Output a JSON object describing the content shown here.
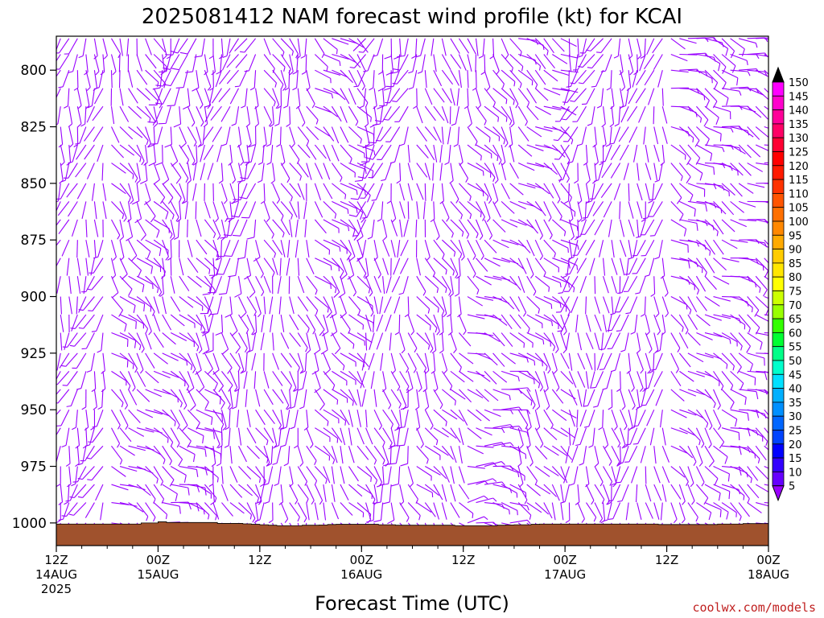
{
  "chart_data": {
    "type": "wind_barb_time_height",
    "title": "2025081412 NAM forecast wind profile (kt) for KCAI",
    "xlabel": "Forecast Time (UTC)",
    "ylabel": "",
    "y_axis": {
      "reversed": true,
      "range": [
        1010,
        785
      ],
      "ticks": [
        "800",
        "825",
        "850",
        "875",
        "900",
        "925",
        "950",
        "975",
        "1000"
      ],
      "tick_values": [
        800,
        825,
        850,
        875,
        900,
        925,
        950,
        975,
        1000
      ]
    },
    "x_axis": {
      "range_hours": [
        0,
        84
      ],
      "ticks": [
        {
          "hour": 0,
          "lines": [
            "12Z",
            "14AUG",
            "2025"
          ]
        },
        {
          "hour": 12,
          "lines": [
            "00Z",
            "15AUG"
          ]
        },
        {
          "hour": 24,
          "lines": [
            "12Z"
          ]
        },
        {
          "hour": 36,
          "lines": [
            "00Z",
            "16AUG"
          ]
        },
        {
          "hour": 48,
          "lines": [
            "12Z"
          ]
        },
        {
          "hour": 60,
          "lines": [
            "00Z",
            "17AUG"
          ]
        },
        {
          "hour": 72,
          "lines": [
            "12Z"
          ]
        },
        {
          "hour": 84,
          "lines": [
            "00Z",
            "18AUG"
          ]
        }
      ]
    },
    "colorbar": {
      "units": "kt",
      "labels": [
        "150",
        "145",
        "140",
        "135",
        "130",
        "125",
        "120",
        "115",
        "110",
        "105",
        "100",
        "95",
        "90",
        "85",
        "80",
        "75",
        "70",
        "65",
        "60",
        "55",
        "50",
        "45",
        "40",
        "35",
        "30",
        "25",
        "20",
        "15",
        "10",
        "5"
      ],
      "colors": [
        "#ff00ff",
        "#ff00cc",
        "#ff0099",
        "#ff0066",
        "#ff0033",
        "#ff0000",
        "#ff1a00",
        "#ff3300",
        "#ff5500",
        "#ff7000",
        "#ff8800",
        "#ffaa00",
        "#ffcc00",
        "#ffe600",
        "#ffff00",
        "#ccff00",
        "#99ff00",
        "#33ff00",
        "#00ff33",
        "#00ff88",
        "#00ffcc",
        "#00e0ff",
        "#00b0ff",
        "#0090ff",
        "#0066ff",
        "#0044ff",
        "#0000ff",
        "#3300ff",
        "#6600ff",
        "#9900ff"
      ]
    },
    "barb_color": "#9900ff",
    "terrain_color": "#a0522d",
    "surface_pressure_hpa": [
      1000.5,
      1000.5,
      1000.5,
      1000.5,
      1000.5,
      1000.5,
      1000.5,
      1000.5,
      1000.5,
      1000.5,
      1000,
      1000,
      999.5,
      999.8,
      999.8,
      999.8,
      999.8,
      999.8,
      999.8,
      1000.2,
      1000.2,
      1000.2,
      1000.4,
      1000.6,
      1000.8,
      1001,
      1001.2,
      1001.2,
      1001.2,
      1001,
      1001,
      1000.9,
      1000.7,
      1000.6,
      1000.6,
      1000.6,
      1000.6,
      1000.6,
      1000.8,
      1000.8,
      1001,
      1001,
      1001,
      1001,
      1001,
      1001,
      1001,
      1001.2,
      1001.2,
      1001.2,
      1001.2,
      1001.2,
      1001,
      1000.9,
      1000.8,
      1000.8,
      1000.6,
      1000.5,
      1000.5,
      1000.5,
      1000.5,
      1000.5,
      1000.5,
      1000.5,
      1000.5,
      1000.5,
      1000.5,
      1000.5,
      1000.5,
      1000.5,
      1000.5,
      1000.7,
      1000.7,
      1000.7,
      1000.7,
      1000.7,
      1000.7,
      1000.7,
      1000.5,
      1000.5,
      1000.5,
      1000.3,
      1000.3,
      1000.3,
      1000.3
    ],
    "barb_columns_hours_step": 1,
    "barb_rows_hpa": [
      786,
      793,
      800,
      808,
      816,
      825,
      833,
      841,
      850,
      858,
      866,
      875,
      883,
      891,
      900,
      908,
      916,
      925,
      933,
      941,
      950,
      958,
      966,
      975,
      983,
      991,
      1000
    ],
    "wind_field": {
      "description_of_pattern": "direction (deg, meteorological) and speed (kt) per time column segment",
      "segments": [
        {
          "hours": [
            0,
            6
          ],
          "low_dir": 200,
          "high_dir": 190,
          "speed": 8
        },
        {
          "hours": [
            6,
            12
          ],
          "low_dir": 120,
          "high_dir": 160,
          "speed": 9
        },
        {
          "hours": [
            12,
            18
          ],
          "low_dir": 110,
          "high_dir": 190,
          "speed": 10
        },
        {
          "hours": [
            18,
            24
          ],
          "low_dir": 150,
          "high_dir": 200,
          "speed": 10
        },
        {
          "hours": [
            24,
            30
          ],
          "low_dir": 170,
          "high_dir": 160,
          "speed": 8
        },
        {
          "hours": [
            30,
            36
          ],
          "low_dir": 150,
          "high_dir": 130,
          "speed": 9
        },
        {
          "hours": [
            36,
            42
          ],
          "low_dir": 160,
          "high_dir": 200,
          "speed": 9
        },
        {
          "hours": [
            42,
            48
          ],
          "low_dir": 140,
          "high_dir": 170,
          "speed": 8
        },
        {
          "hours": [
            48,
            54
          ],
          "low_dir": 90,
          "high_dir": 160,
          "speed": 7
        },
        {
          "hours": [
            54,
            60
          ],
          "low_dir": 150,
          "high_dir": 120,
          "speed": 8
        },
        {
          "hours": [
            60,
            66
          ],
          "low_dir": 170,
          "high_dir": 200,
          "speed": 8
        },
        {
          "hours": [
            66,
            72
          ],
          "low_dir": 180,
          "high_dir": 190,
          "speed": 8
        },
        {
          "hours": [
            72,
            78
          ],
          "low_dir": 140,
          "high_dir": 110,
          "speed": 9
        },
        {
          "hours": [
            78,
            84
          ],
          "low_dir": 120,
          "high_dir": 110,
          "speed": 9
        }
      ]
    }
  },
  "credit": "coolwx.com/models"
}
